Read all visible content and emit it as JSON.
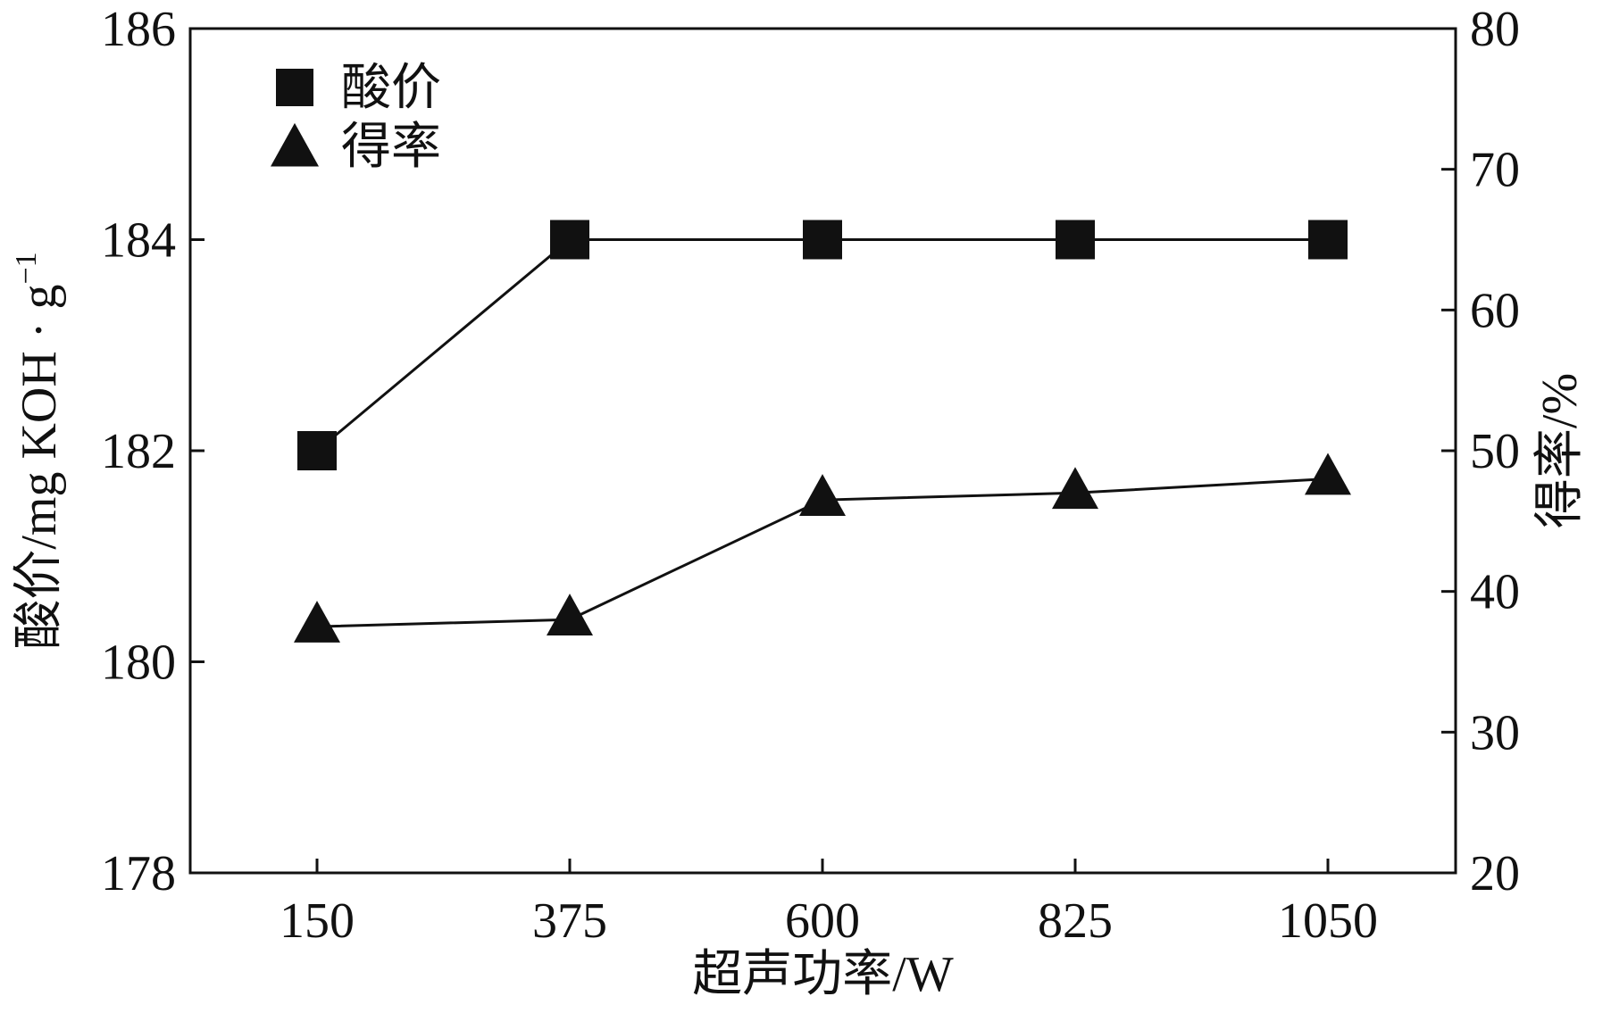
{
  "chart_data": {
    "type": "line",
    "x": [
      "150",
      "375",
      "600",
      "825",
      "1050"
    ],
    "xlabel": "超声功率/W",
    "y_left": {
      "label": "酸价/mg KOH · g",
      "label_superscript": "−1",
      "lim": [
        178,
        186
      ],
      "ticks": [
        "178",
        "180",
        "182",
        "184",
        "186"
      ]
    },
    "y_right": {
      "label": "得率/%",
      "lim": [
        20,
        80
      ],
      "ticks": [
        "20",
        "30",
        "40",
        "50",
        "60",
        "70",
        "80"
      ]
    },
    "series": [
      {
        "name": "酸价",
        "axis": "left",
        "marker": "square",
        "values": [
          182,
          184,
          184,
          184,
          184
        ]
      },
      {
        "name": "得率",
        "axis": "right",
        "marker": "triangle",
        "values": [
          37.5,
          38.0,
          46.5,
          47.0,
          48.0
        ]
      }
    ],
    "legend_position": "top-left",
    "grid": false,
    "colors": {
      "line": "#111111",
      "marker": "#111111",
      "axis": "#111111",
      "background": "#ffffff"
    }
  }
}
